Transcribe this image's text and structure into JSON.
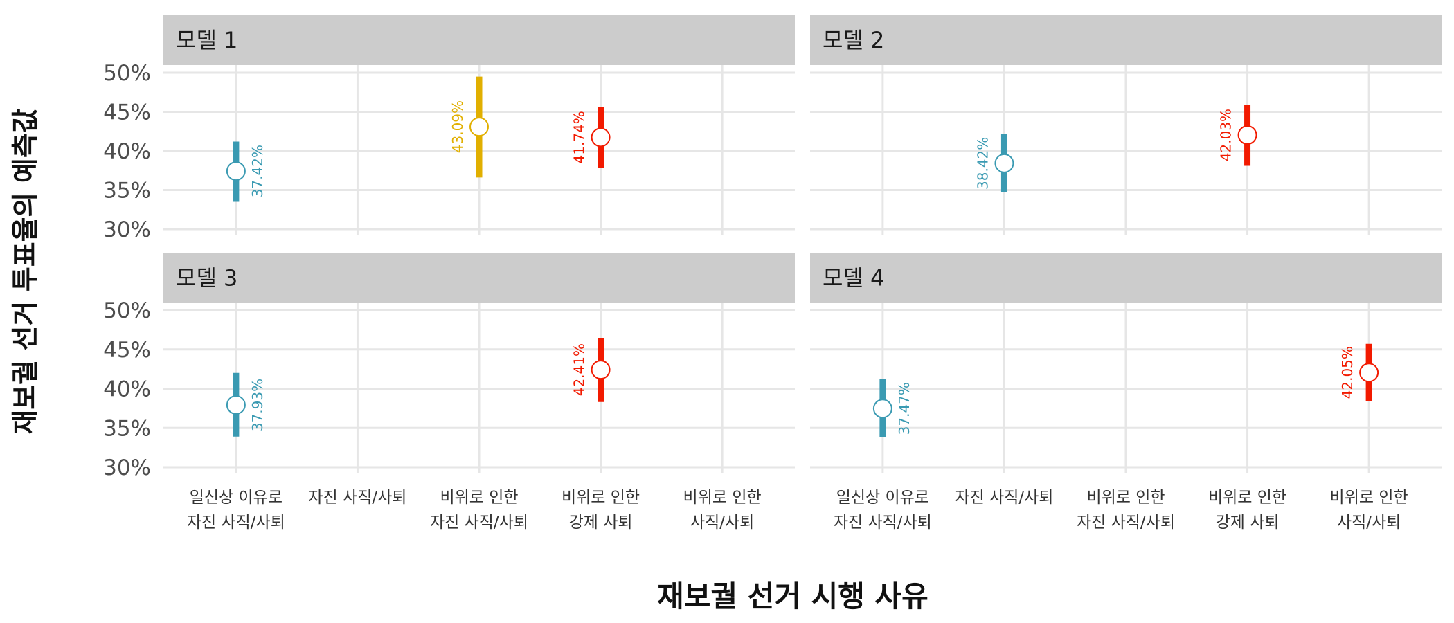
{
  "chart_data": {
    "type": "point-range",
    "xlabel": "재보궐 선거 시행 사유",
    "ylabel": "재보궐 선거 투표율의 예측값",
    "categories": [
      [
        "일신상 이유로",
        "자진 사직/사퇴"
      ],
      [
        "자진 사직/사퇴"
      ],
      [
        "비위로 인한",
        "자진 사직/사퇴"
      ],
      [
        "비위로 인한",
        "강제 사퇴"
      ],
      [
        "비위로 인한",
        "사직/사퇴"
      ]
    ],
    "y_ticks": [
      30,
      35,
      40,
      45,
      50
    ],
    "y_tick_labels": [
      "30%",
      "35%",
      "40%",
      "45%",
      "50%"
    ],
    "ylim": [
      30,
      50
    ],
    "grid": true,
    "colors": [
      "#3a9ab2",
      "#3a9ab2",
      "#e1af00",
      "#f21a00",
      "#f21a00"
    ],
    "panels": [
      {
        "title": "모델 1",
        "points": [
          {
            "category": 0,
            "estimate": 37.42,
            "lower": 33.5,
            "upper": 41.2,
            "label": "37.42%",
            "label_side": "right"
          },
          {
            "category": 2,
            "estimate": 43.09,
            "lower": 36.6,
            "upper": 49.5,
            "label": "43.09%",
            "label_side": "left"
          },
          {
            "category": 3,
            "estimate": 41.74,
            "lower": 37.8,
            "upper": 45.6,
            "label": "41.74%",
            "label_side": "left"
          }
        ]
      },
      {
        "title": "모델 2",
        "points": [
          {
            "category": 1,
            "estimate": 38.42,
            "lower": 34.7,
            "upper": 42.2,
            "label": "38.42%",
            "label_side": "left"
          },
          {
            "category": 3,
            "estimate": 42.03,
            "lower": 38.1,
            "upper": 45.9,
            "label": "42.03%",
            "label_side": "left"
          }
        ]
      },
      {
        "title": "모델 3",
        "points": [
          {
            "category": 0,
            "estimate": 37.93,
            "lower": 33.9,
            "upper": 42.0,
            "label": "37.93%",
            "label_side": "right"
          },
          {
            "category": 3,
            "estimate": 42.41,
            "lower": 38.3,
            "upper": 46.4,
            "label": "42.41%",
            "label_side": "left"
          }
        ]
      },
      {
        "title": "모델 4",
        "points": [
          {
            "category": 0,
            "estimate": 37.47,
            "lower": 33.8,
            "upper": 41.2,
            "label": "37.47%",
            "label_side": "right"
          },
          {
            "category": 4,
            "estimate": 42.05,
            "lower": 38.4,
            "upper": 45.7,
            "label": "42.05%",
            "label_side": "left"
          }
        ]
      }
    ]
  }
}
